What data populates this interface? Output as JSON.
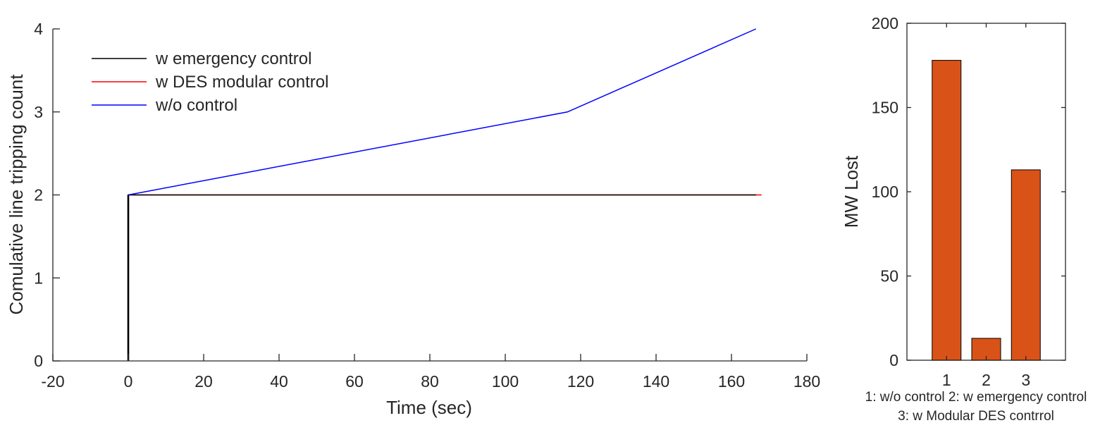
{
  "chart_data": [
    {
      "type": "line",
      "title": "",
      "xlabel": "Time (sec)",
      "ylabel": "Comulative line tripping count",
      "xlim": [
        -20,
        180
      ],
      "ylim": [
        0,
        4
      ],
      "xticks": [
        -20,
        0,
        20,
        40,
        60,
        80,
        100,
        120,
        140,
        160,
        180
      ],
      "yticks": [
        0,
        1,
        2,
        3,
        4
      ],
      "grid": false,
      "legend_position": "top-left",
      "series": [
        {
          "name": "w emergency control",
          "color": "#000000",
          "x": [
            0,
            0,
            166.5
          ],
          "y": [
            0,
            2,
            2
          ]
        },
        {
          "name": "w DES modular control",
          "color": "#ff0000",
          "x": [
            0,
            0,
            168
          ],
          "y": [
            0,
            2,
            2
          ]
        },
        {
          "name": "w/o control",
          "color": "#0000ff",
          "x": [
            0,
            116.5,
            166.5
          ],
          "y": [
            2,
            3,
            4
          ]
        }
      ]
    },
    {
      "type": "bar",
      "title": "",
      "xlabel": "",
      "ylabel": "MW Lost",
      "categories": [
        "1",
        "2",
        "3"
      ],
      "values": [
        178,
        13,
        113
      ],
      "ylim": [
        0,
        200
      ],
      "yticks": [
        0,
        50,
        100,
        150,
        200
      ],
      "bar_color": "#d95319",
      "grid": false,
      "caption_lines": [
        "1: w/o control 2: w emergency control",
        "3: w Modular DES contrrol"
      ]
    }
  ]
}
